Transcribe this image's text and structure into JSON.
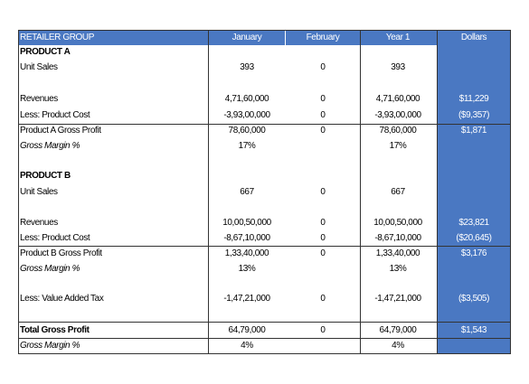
{
  "table": {
    "header": [
      "RETAILER GROUP",
      "January",
      "February",
      "Year 1",
      "Dollars"
    ],
    "rows": [
      [
        "PRODUCT A",
        null,
        null,
        null,
        null
      ],
      [
        "Unit Sales",
        "393",
        "0",
        "393",
        null
      ],
      [
        "Revenues",
        "4,71,60,000",
        "0",
        "4,71,60,000",
        "$11,229"
      ],
      [
        "Less: Product Cost",
        "-3,93,00,000",
        "0",
        "-3,93,00,000",
        "($9,357)"
      ],
      [
        "Product A Gross Profit",
        "78,60,000",
        "0",
        "78,60,000",
        "$1,871"
      ],
      [
        "Gross Margin %",
        "17%",
        null,
        "17%",
        null
      ],
      [
        "PRODUCT B",
        null,
        null,
        null,
        null
      ],
      [
        "Unit Sales",
        "667",
        "0",
        "667",
        null
      ],
      [
        "Revenues",
        "10,00,50,000",
        "0",
        "10,00,50,000",
        "$23,821"
      ],
      [
        "Less: Product Cost",
        "-8,67,10,000",
        "0",
        "-8,67,10,000",
        "($20,645)"
      ],
      [
        "Product B Gross Profit",
        "1,33,40,000",
        "0",
        "1,33,40,000",
        "$3,176"
      ],
      [
        "Gross Margin %",
        "13%",
        null,
        "13%",
        null
      ],
      [
        "Less: Value Added Tax",
        "-1,47,21,000",
        "0",
        "-1,47,21,000",
        "($3,505)"
      ],
      [
        "Total Gross Profit",
        "64,79,000",
        "0",
        "64,79,000",
        "$1,543"
      ],
      [
        "Gross Margin %",
        "4%",
        null,
        "4%",
        null
      ]
    ]
  }
}
